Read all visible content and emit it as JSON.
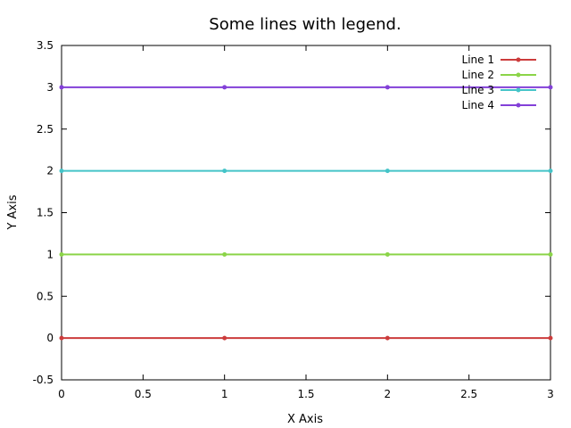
{
  "chart_data": {
    "type": "line",
    "title": "Some lines with legend.",
    "xlabel": "X Axis",
    "ylabel": "Y Axis",
    "xlim": [
      0,
      3
    ],
    "ylim": [
      -0.5,
      3.5
    ],
    "x_ticks": [
      "0",
      "0.5",
      "1",
      "1.5",
      "2",
      "2.5",
      "3"
    ],
    "y_ticks": [
      "-0.5",
      "0",
      "0.5",
      "1",
      "1.5",
      "2",
      "2.5",
      "3",
      "3.5"
    ],
    "grid": false,
    "legend_position": "top-right",
    "x": [
      0,
      1,
      2,
      3
    ],
    "series": [
      {
        "name": "Line 1",
        "values": [
          0,
          0,
          0,
          0
        ],
        "color": "#cc3c3c"
      },
      {
        "name": "Line 2",
        "values": [
          1,
          1,
          1,
          1
        ],
        "color": "#8bd448"
      },
      {
        "name": "Line 3",
        "values": [
          2,
          2,
          2,
          2
        ],
        "color": "#44c4c8"
      },
      {
        "name": "Line 4",
        "values": [
          3,
          3,
          3,
          3
        ],
        "color": "#8340d8"
      }
    ]
  }
}
